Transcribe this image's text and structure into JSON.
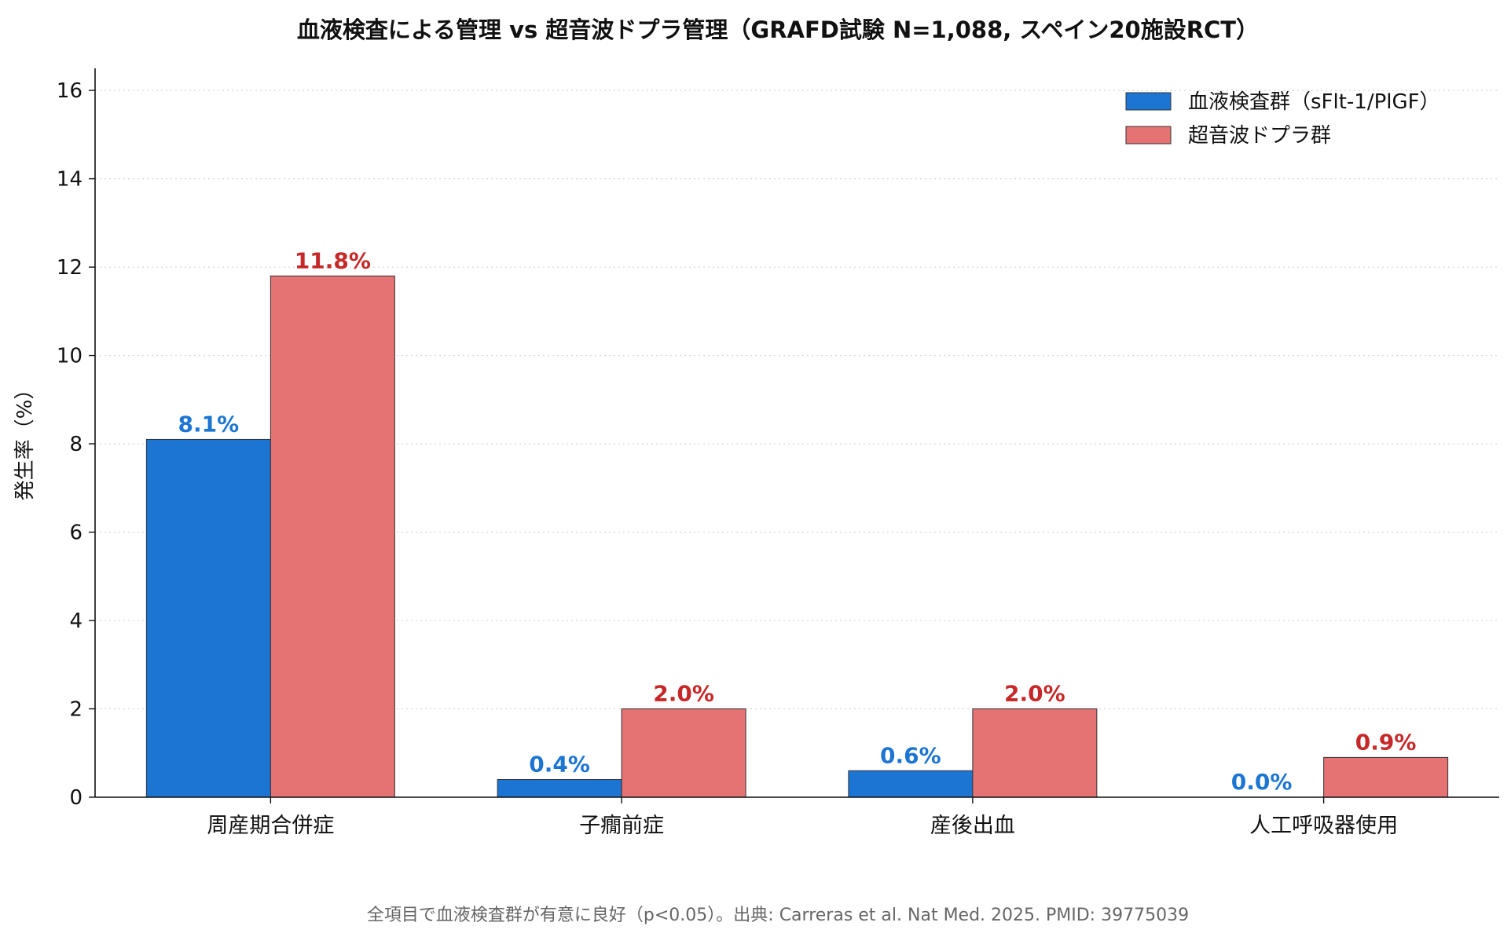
{
  "chart_data": {
    "type": "bar",
    "title": "血液検査による管理 vs 超音波ドプラ管理（GRAFD試験 N=1,088, スペイン20施設RCT）",
    "ylabel": "発生率（%）",
    "xlabel": "",
    "ylim": [
      0,
      16.5
    ],
    "yticks": [
      0,
      2,
      4,
      6,
      8,
      10,
      12,
      14,
      16
    ],
    "grid": "horizontal-dotted",
    "legend_position": "top-right",
    "categories": [
      "周産期合併症",
      "子癇前症",
      "産後出血",
      "人工呼吸器使用"
    ],
    "series": [
      {
        "name": "血液検査群（sFlt-1/PlGF）",
        "color": "#1c75d2",
        "label_color": "#1c75d2",
        "values": [
          8.1,
          0.4,
          0.6,
          0.0
        ],
        "labels": [
          "8.1%",
          "0.4%",
          "0.6%",
          "0.0%"
        ]
      },
      {
        "name": "超音波ドプラ群",
        "color": "#e57373",
        "label_color": "#c62828",
        "values": [
          11.8,
          2.0,
          2.0,
          0.9
        ],
        "labels": [
          "11.8%",
          "2.0%",
          "2.0%",
          "0.9%"
        ]
      }
    ],
    "footnote": "全項目で血液検査群が有意に良好（p<0.05）。出典: Carreras et al. Nat Med. 2025. PMID: 39775039"
  }
}
